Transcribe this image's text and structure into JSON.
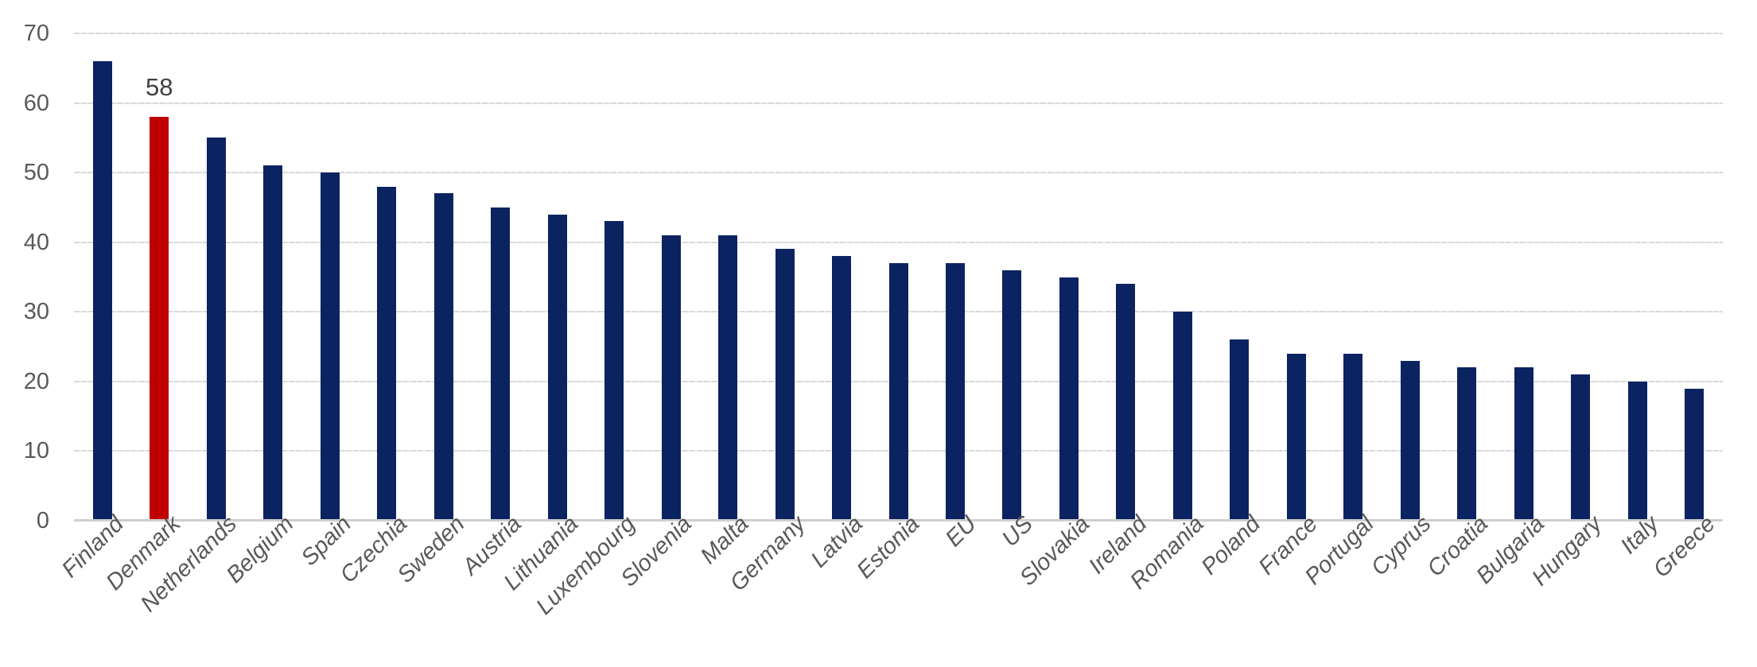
{
  "chart_data": {
    "type": "bar",
    "title": "",
    "xlabel": "",
    "ylabel": "",
    "categories": [
      "Finland",
      "Denmark",
      "Netherlands",
      "Belgium",
      "Spain",
      "Czechia",
      "Sweden",
      "Austria",
      "Lithuania",
      "Luxembourg",
      "Slovenia",
      "Malta",
      "Germany",
      "Latvia",
      "Estonia",
      "EU",
      "US",
      "Slovakia",
      "Ireland",
      "Romania",
      "Poland",
      "France",
      "Portugal",
      "Cyprus",
      "Croatia",
      "Bulgaria",
      "Hungary",
      "Italy",
      "Greece"
    ],
    "values": [
      66,
      58,
      55,
      51,
      50,
      48,
      47,
      45,
      44,
      43,
      41,
      41,
      39,
      38,
      37,
      37,
      36,
      35,
      34,
      30,
      26,
      24,
      24,
      23,
      22,
      22,
      21,
      20,
      19
    ],
    "ylim": [
      0,
      70
    ],
    "yticks": [
      0,
      10,
      20,
      30,
      40,
      50,
      60,
      70
    ],
    "grid": "horizontal",
    "legend": "none",
    "highlight": {
      "category": "Denmark",
      "data_label": "58"
    },
    "colors": {
      "bar": "#0b2361",
      "highlight_bar": "#c00000",
      "axis_text": "#595959",
      "data_label_text": "#404040",
      "gridline": "#d9d9d9",
      "axis_line": "#cfcfcf",
      "background": "#ffffff"
    }
  }
}
